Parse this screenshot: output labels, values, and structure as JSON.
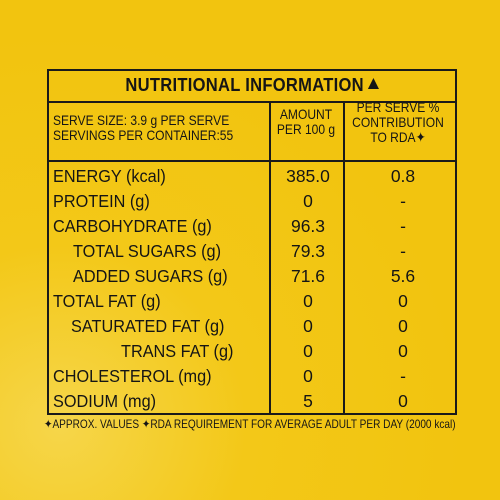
{
  "title": "NUTRITIONAL INFORMATION",
  "header": {
    "serve_size": "SERVE SIZE: 3.9 g PER SERVE",
    "servings": "SERVINGS PER CONTAINER:55",
    "amount_line1": "AMOUNT",
    "amount_line2": "PER 100 g",
    "rda_line1": "PER SERVE %",
    "rda_line2": "CONTRIBUTION",
    "rda_line3": "TO RDA✦"
  },
  "rows": [
    {
      "label": "ENERGY (kcal)",
      "amount": "385.0",
      "rda": "0.8"
    },
    {
      "label": "PROTEIN (g)",
      "amount": "0",
      "rda": "-"
    },
    {
      "label": "CARBOHYDRATE (g)",
      "amount": "96.3",
      "rda": "-"
    },
    {
      "label": "TOTAL SUGARS (g)",
      "amount": "79.3",
      "rda": "-"
    },
    {
      "label": "ADDED SUGARS (g)",
      "amount": "71.6",
      "rda": "5.6"
    },
    {
      "label": "TOTAL FAT (g)",
      "amount": "0",
      "rda": "0"
    },
    {
      "label": "SATURATED FAT (g)",
      "amount": "0",
      "rda": "0"
    },
    {
      "label": "TRANS FAT (g)",
      "amount": "0",
      "rda": "0"
    },
    {
      "label": "CHOLESTEROL (mg)",
      "amount": "0",
      "rda": "-"
    },
    {
      "label": "SODIUM (mg)",
      "amount": "5",
      "rda": "0"
    }
  ],
  "footnote": "✦APPROX. VALUES  ✦RDA REQUIREMENT FOR AVERAGE ADULT PER DAY (2000 kcal)",
  "colors": {
    "background": "#f2c40f",
    "ink": "#151515"
  }
}
